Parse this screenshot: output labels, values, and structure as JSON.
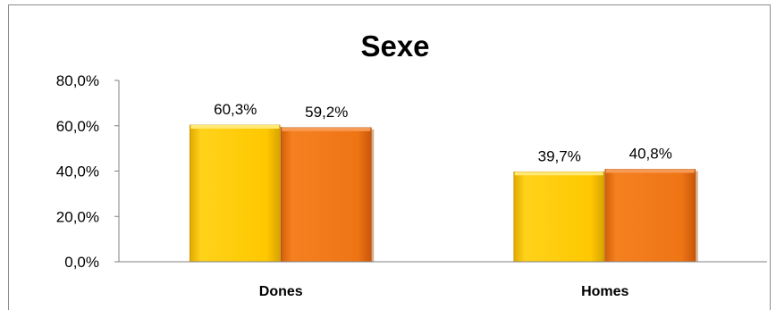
{
  "chart_data": {
    "type": "bar",
    "title": "Sexe",
    "categories": [
      "Dones",
      "Homes"
    ],
    "series": [
      {
        "values": [
          60.3,
          39.7
        ],
        "labels": [
          "60,3%",
          "39,7%"
        ],
        "color": "#FFC800"
      },
      {
        "values": [
          59.2,
          40.8
        ],
        "labels": [
          "59,2%",
          "40,8%"
        ],
        "color": "#EF7414"
      }
    ],
    "ylim": [
      0,
      80
    ],
    "yticks": [
      0,
      20,
      40,
      60,
      80
    ],
    "ytick_labels": [
      "0,0%",
      "20,0%",
      "40,0%",
      "60,0%",
      "80,0%"
    ],
    "grid": false,
    "legend": "none"
  }
}
